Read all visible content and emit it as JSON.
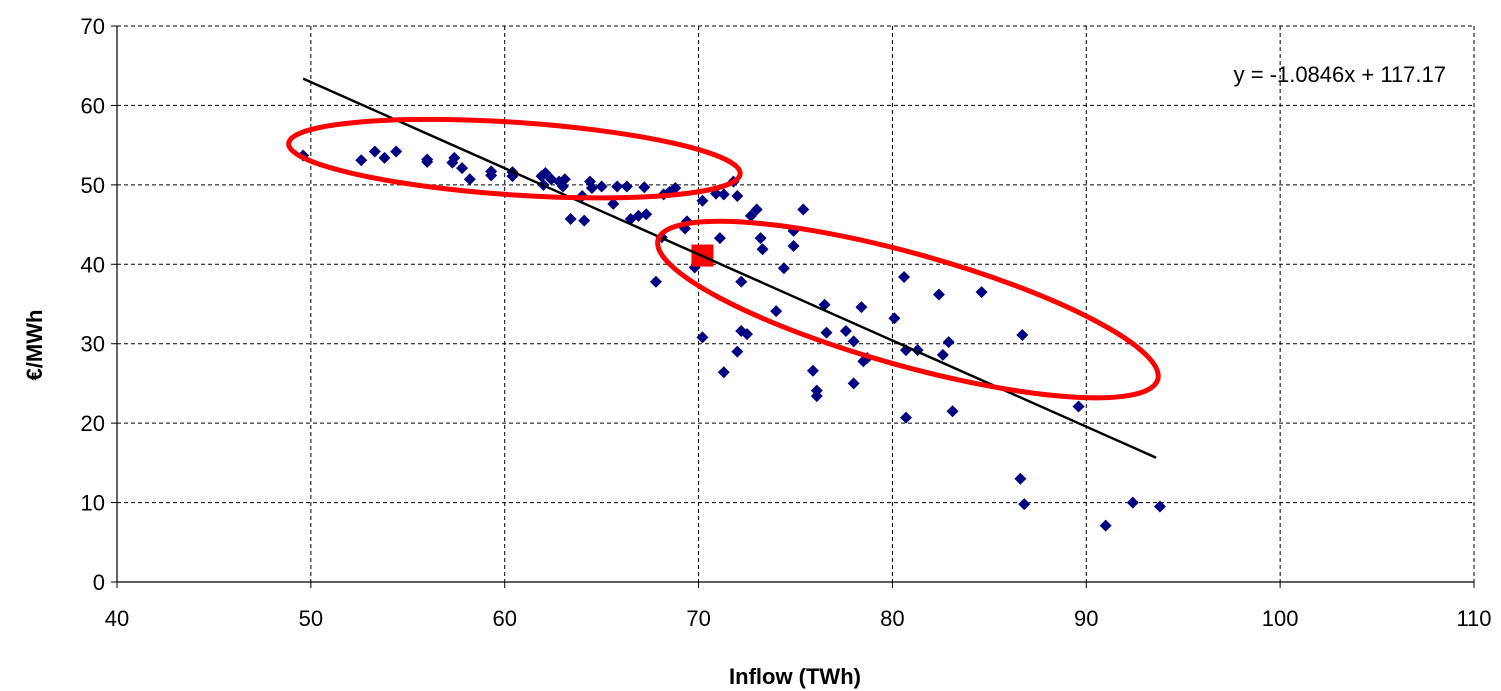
{
  "chart_data": {
    "type": "scatter",
    "title": "",
    "xlabel": "Inflow (TWh)",
    "ylabel": "€/MWh",
    "xlim": [
      40,
      110
    ],
    "ylim": [
      0,
      70
    ],
    "x_ticks": [
      "40",
      "50",
      "60",
      "70",
      "80",
      "90",
      "100",
      "110"
    ],
    "y_ticks": [
      "0",
      "10",
      "20",
      "30",
      "40",
      "50",
      "60",
      "70"
    ],
    "grid": true,
    "colors": {
      "points": "#000080",
      "highlight": "#ff0000",
      "trendline": "#000000",
      "ellipse": "#ff0000"
    },
    "series": [
      {
        "points": [
          [
            49.6,
            53.7
          ],
          [
            52.6,
            53.1
          ],
          [
            53.3,
            54.2
          ],
          [
            53.8,
            53.4
          ],
          [
            54.4,
            54.2
          ],
          [
            56.0,
            52.9
          ],
          [
            56.0,
            53.2
          ],
          [
            57.3,
            52.8
          ],
          [
            57.4,
            53.4
          ],
          [
            57.8,
            52.1
          ],
          [
            58.2,
            50.7
          ],
          [
            59.3,
            51.2
          ],
          [
            59.3,
            51.7
          ],
          [
            60.4,
            51.1
          ],
          [
            60.4,
            51.6
          ],
          [
            61.9,
            51.1
          ],
          [
            62.0,
            50.0
          ],
          [
            62.1,
            51.5
          ],
          [
            62.4,
            50.7
          ],
          [
            62.8,
            50.4
          ],
          [
            63.0,
            49.8
          ],
          [
            63.1,
            50.7
          ],
          [
            63.4,
            45.7
          ],
          [
            64.0,
            48.6
          ],
          [
            64.1,
            45.5
          ],
          [
            64.4,
            50.4
          ],
          [
            64.5,
            49.6
          ],
          [
            65.0,
            49.8
          ],
          [
            65.6,
            47.6
          ],
          [
            65.8,
            49.8
          ],
          [
            66.3,
            49.8
          ],
          [
            66.5,
            45.7
          ],
          [
            66.9,
            46.1
          ],
          [
            67.2,
            49.7
          ],
          [
            67.3,
            46.3
          ],
          [
            67.8,
            37.8
          ],
          [
            68.1,
            43.4
          ],
          [
            68.2,
            48.8
          ],
          [
            68.5,
            49.1
          ],
          [
            68.8,
            49.6
          ],
          [
            69.3,
            44.5
          ],
          [
            69.4,
            45.4
          ],
          [
            69.8,
            39.6
          ],
          [
            70.2,
            48.0
          ],
          [
            70.2,
            30.8
          ],
          [
            70.9,
            48.9
          ],
          [
            71.1,
            43.3
          ],
          [
            71.3,
            48.8
          ],
          [
            71.3,
            26.4
          ],
          [
            71.8,
            50.4
          ],
          [
            72.0,
            48.6
          ],
          [
            72.0,
            29.0
          ],
          [
            72.2,
            37.8
          ],
          [
            72.2,
            31.6
          ],
          [
            72.5,
            31.2
          ],
          [
            72.7,
            46.1
          ],
          [
            73.0,
            46.9
          ],
          [
            73.2,
            43.3
          ],
          [
            73.3,
            41.9
          ],
          [
            74.0,
            34.1
          ],
          [
            74.4,
            39.5
          ],
          [
            74.9,
            44.2
          ],
          [
            74.9,
            42.3
          ],
          [
            75.4,
            46.9
          ],
          [
            75.9,
            26.6
          ],
          [
            76.1,
            23.4
          ],
          [
            76.1,
            24.1
          ],
          [
            76.5,
            34.9
          ],
          [
            76.6,
            31.4
          ],
          [
            77.6,
            31.6
          ],
          [
            78.0,
            30.3
          ],
          [
            78.0,
            25.0
          ],
          [
            78.4,
            34.6
          ],
          [
            78.5,
            27.8
          ],
          [
            78.7,
            28.2
          ],
          [
            80.1,
            33.2
          ],
          [
            80.6,
            38.4
          ],
          [
            80.7,
            29.2
          ],
          [
            80.7,
            20.7
          ],
          [
            81.3,
            29.2
          ],
          [
            82.4,
            36.2
          ],
          [
            82.6,
            28.6
          ],
          [
            82.9,
            30.2
          ],
          [
            83.1,
            21.5
          ],
          [
            84.6,
            36.5
          ],
          [
            86.6,
            13.0
          ],
          [
            86.7,
            31.1
          ],
          [
            86.8,
            9.8
          ],
          [
            89.6,
            22.1
          ],
          [
            91.0,
            7.1
          ],
          [
            92.4,
            10.0
          ],
          [
            93.8,
            9.5
          ]
        ]
      },
      {
        "points": [
          [
            70.2,
            41.1
          ]
        ]
      }
    ],
    "trendline": {
      "slope": -1.0846,
      "intercept": 117.17,
      "x_range": [
        49.6,
        93.6
      ],
      "label": "y = -1.0846x + 117.17"
    },
    "annotations": [
      {
        "type": "ellipse",
        "center": [
          60.5,
          53.3
        ],
        "semi_axes": [
          11.8,
          4.3
        ],
        "angle_deg": -9.3
      },
      {
        "type": "ellipse",
        "center": [
          80.8,
          34.3
        ],
        "semi_axes": [
          15.6,
          4.4
        ],
        "angle_deg": -34.3
      }
    ]
  }
}
